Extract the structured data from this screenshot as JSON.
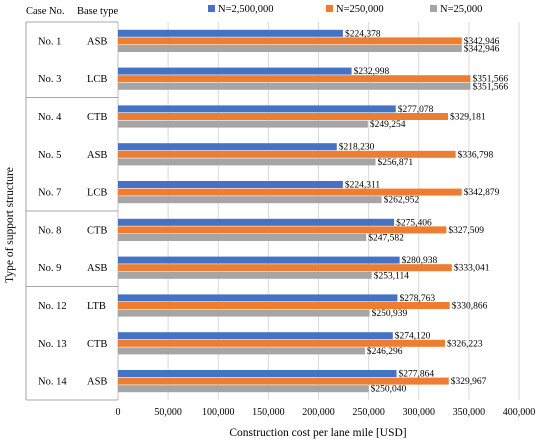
{
  "chart_data": {
    "type": "bar",
    "orientation": "horizontal",
    "headers": {
      "case": "Case No.",
      "base": "Base type"
    },
    "xlabel": "Construction cost per lane mile [USD]",
    "ylabel": "Type of support structure",
    "xlim": [
      0,
      400000
    ],
    "xticks": [
      "0",
      "50,000",
      "100,000",
      "150,000",
      "200,000",
      "250,000",
      "300,000",
      "350,000",
      "400,000"
    ],
    "grid": true,
    "legend_position": "top",
    "colors": {
      "N2500000": "#4472C4",
      "N250000": "#ED7D31",
      "N25000": "#A5A5A5"
    },
    "series": [
      {
        "name": "N=2,500,000",
        "key": "N2500000"
      },
      {
        "name": "N=250,000",
        "key": "N250000"
      },
      {
        "name": "N=25,000",
        "key": "N25000"
      }
    ],
    "groups": [
      {
        "case": "No. 1",
        "base": "ASB",
        "values": [
          224378,
          342946,
          342946
        ],
        "labels": [
          "$224,378",
          "$342,946",
          "$342,946"
        ]
      },
      {
        "case": "No. 3",
        "base": "LCB",
        "values": [
          232998,
          351566,
          351566
        ],
        "labels": [
          "$232,998",
          "$351,566",
          "$351,566"
        ]
      },
      {
        "case": "No. 4",
        "base": "CTB",
        "values": [
          277078,
          329181,
          249254
        ],
        "labels": [
          "$277,078",
          "$329,181",
          "$249,254"
        ]
      },
      {
        "case": "No. 5",
        "base": "ASB",
        "values": [
          218230,
          336798,
          256871
        ],
        "labels": [
          "$218,230",
          "$336,798",
          "$256,871"
        ]
      },
      {
        "case": "No. 7",
        "base": "LCB",
        "values": [
          224311,
          342879,
          262952
        ],
        "labels": [
          "$224,311",
          "$342,879",
          "$262,952"
        ]
      },
      {
        "case": "No. 8",
        "base": "CTB",
        "values": [
          275406,
          327509,
          247582
        ],
        "labels": [
          "$275,406",
          "$327,509",
          "$247,582"
        ]
      },
      {
        "case": "No. 9",
        "base": "ASB",
        "values": [
          280938,
          333041,
          253114
        ],
        "labels": [
          "$280,938",
          "$333,041",
          "$253,114"
        ]
      },
      {
        "case": "No. 12",
        "base": "LTB",
        "values": [
          278763,
          330866,
          250939
        ],
        "labels": [
          "$278,763",
          "$330,866",
          "$250,939"
        ]
      },
      {
        "case": "No. 13",
        "base": "CTB",
        "values": [
          274120,
          326223,
          246296
        ],
        "labels": [
          "$274,120",
          "$326,223",
          "$246,296"
        ]
      },
      {
        "case": "No. 14",
        "base": "ASB",
        "values": [
          277864,
          329967,
          250040
        ],
        "labels": [
          "$277,864",
          "$329,967",
          "$250,040"
        ]
      }
    ]
  }
}
